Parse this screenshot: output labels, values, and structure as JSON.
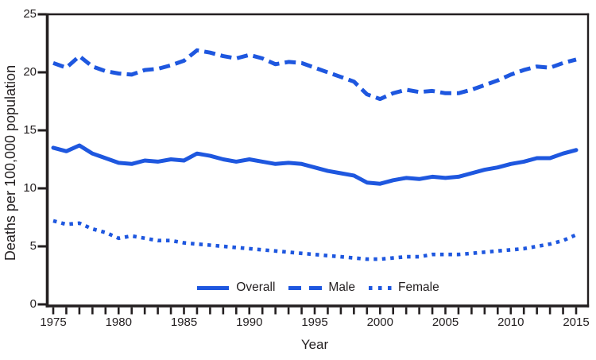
{
  "figure": {
    "accent_blue": "#1E57DF",
    "axis_color": "#231F20",
    "background": "#ffffff"
  },
  "chart_data": {
    "type": "line",
    "title": "",
    "xlabel": "Year",
    "ylabel": "Deaths per 100,000 population",
    "x_range": [
      1975,
      2015
    ],
    "y_range": [
      0,
      25
    ],
    "y_ticks": [
      0,
      5,
      10,
      15,
      20,
      25
    ],
    "x_major_ticks": [
      1975,
      1980,
      1985,
      1990,
      1995,
      2000,
      2005,
      2010,
      2015
    ],
    "x_minor_tick_interval": 1,
    "grid": false,
    "frame": "full-box",
    "legend_position": "bottom-center-inside",
    "years": [
      1975,
      1976,
      1977,
      1978,
      1979,
      1980,
      1981,
      1982,
      1983,
      1984,
      1985,
      1986,
      1987,
      1988,
      1989,
      1990,
      1991,
      1992,
      1993,
      1994,
      1995,
      1996,
      1997,
      1998,
      1999,
      2000,
      2001,
      2002,
      2003,
      2004,
      2005,
      2006,
      2007,
      2008,
      2009,
      2010,
      2011,
      2012,
      2013,
      2014,
      2015
    ],
    "series": [
      {
        "name": "Overall",
        "line_style": "solid",
        "color": "#1E57DF",
        "values": [
          13.5,
          13.2,
          13.7,
          13.0,
          12.6,
          12.2,
          12.1,
          12.4,
          12.3,
          12.5,
          12.4,
          13.0,
          12.8,
          12.5,
          12.3,
          12.5,
          12.3,
          12.1,
          12.2,
          12.1,
          11.8,
          11.5,
          11.3,
          11.1,
          10.5,
          10.4,
          10.7,
          10.9,
          10.8,
          11.0,
          10.9,
          11.0,
          11.3,
          11.6,
          11.8,
          12.1,
          12.3,
          12.6,
          12.6,
          13.0,
          13.3
        ]
      },
      {
        "name": "Male",
        "line_style": "dashed",
        "color": "#1E57DF",
        "values": [
          20.8,
          20.4,
          21.4,
          20.5,
          20.1,
          19.9,
          19.8,
          20.2,
          20.3,
          20.6,
          21.0,
          21.9,
          21.7,
          21.4,
          21.2,
          21.5,
          21.2,
          20.7,
          20.9,
          20.8,
          20.4,
          20.0,
          19.6,
          19.2,
          18.1,
          17.7,
          18.2,
          18.5,
          18.3,
          18.4,
          18.2,
          18.2,
          18.5,
          18.9,
          19.3,
          19.8,
          20.2,
          20.5,
          20.4,
          20.8,
          21.1
        ]
      },
      {
        "name": "Female",
        "line_style": "dotted",
        "color": "#1E57DF",
        "values": [
          7.2,
          6.9,
          7.0,
          6.5,
          6.2,
          5.7,
          5.9,
          5.7,
          5.5,
          5.5,
          5.3,
          5.2,
          5.1,
          5.0,
          4.9,
          4.8,
          4.7,
          4.6,
          4.5,
          4.4,
          4.3,
          4.2,
          4.1,
          4.0,
          3.9,
          3.9,
          4.0,
          4.1,
          4.1,
          4.3,
          4.3,
          4.3,
          4.4,
          4.5,
          4.6,
          4.7,
          4.8,
          5.0,
          5.2,
          5.5,
          6.0
        ]
      }
    ]
  }
}
